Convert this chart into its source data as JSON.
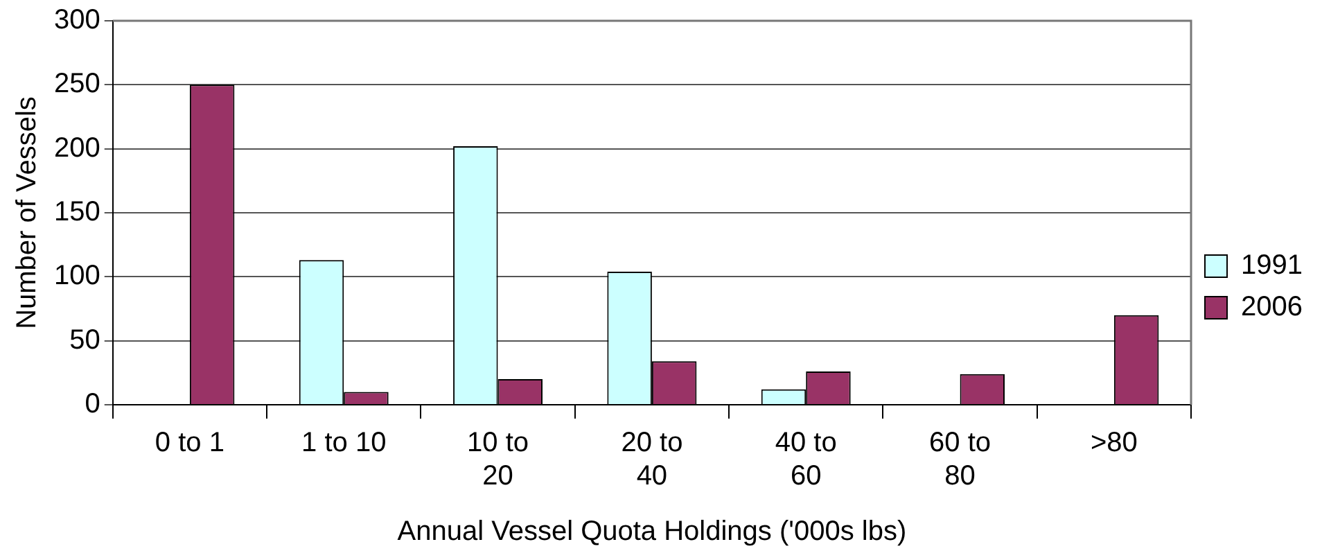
{
  "chart_data": {
    "type": "bar",
    "xlabel": "Annual Vessel Quota Holdings ('000s lbs)",
    "ylabel": "Number of Vessels",
    "categories": [
      "0 to 1",
      "1 to 10",
      "10 to 20",
      "20 to 40",
      "40 to 60",
      "60 to 80",
      ">80"
    ],
    "series": [
      {
        "name": "1991",
        "color": "#ccffff",
        "values": [
          0,
          113,
          202,
          104,
          12,
          0,
          0
        ]
      },
      {
        "name": "2006",
        "color": "#993366",
        "values": [
          250,
          10,
          20,
          34,
          26,
          24,
          70
        ]
      }
    ],
    "ylim": [
      0,
      300
    ],
    "yticks": [
      0,
      50,
      100,
      150,
      200,
      250,
      300
    ],
    "grid": "y",
    "legend": "right"
  }
}
